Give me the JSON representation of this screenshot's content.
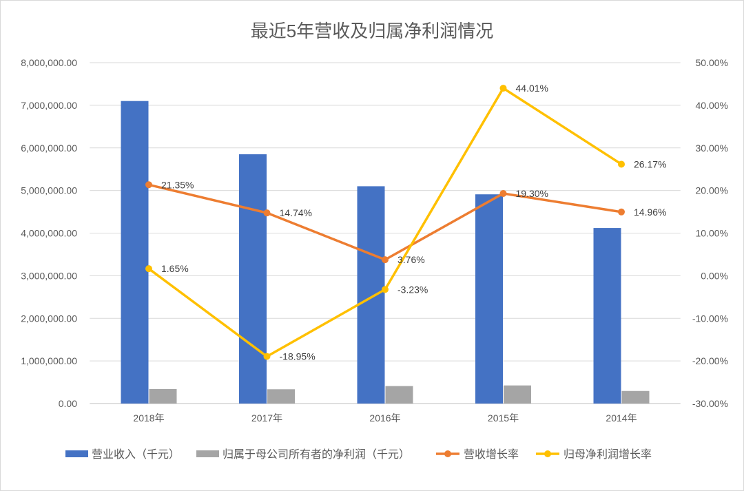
{
  "chart_data": {
    "type": "bar",
    "title": "最近5年营收及归属净利润情况",
    "categories": [
      "2018年",
      "2017年",
      "2016年",
      "2015年",
      "2014年"
    ],
    "ylim": [
      0,
      8000000
    ],
    "y2lim": [
      -30,
      50
    ],
    "grid": true,
    "legend_position": "bottom",
    "y_ticks": [
      {
        "value": 0,
        "label": "0.00"
      },
      {
        "value": 1000000,
        "label": "1,000,000.00"
      },
      {
        "value": 2000000,
        "label": "2,000,000.00"
      },
      {
        "value": 3000000,
        "label": "3,000,000.00"
      },
      {
        "value": 4000000,
        "label": "4,000,000.00"
      },
      {
        "value": 5000000,
        "label": "5,000,000.00"
      },
      {
        "value": 6000000,
        "label": "6,000,000.00"
      },
      {
        "value": 7000000,
        "label": "7,000,000.00"
      },
      {
        "value": 8000000,
        "label": "8,000,000.00"
      }
    ],
    "y2_ticks": [
      {
        "value": -30,
        "label": "-30.00%"
      },
      {
        "value": -20,
        "label": "-20.00%"
      },
      {
        "value": -10,
        "label": "-10.00%"
      },
      {
        "value": 0,
        "label": "0.00%"
      },
      {
        "value": 10,
        "label": "10.00%"
      },
      {
        "value": 20,
        "label": "20.00%"
      },
      {
        "value": 30,
        "label": "30.00%"
      },
      {
        "value": 40,
        "label": "40.00%"
      },
      {
        "value": 50,
        "label": "50.00%"
      }
    ],
    "series": [
      {
        "name": "营业收入（千元）",
        "type": "bar",
        "axis": "left",
        "color": "#4472C4",
        "values": [
          7100000,
          5850000,
          5100000,
          4910000,
          4120000
        ]
      },
      {
        "name": "归属于母公司所有者的净利润（千元）",
        "type": "bar",
        "axis": "left",
        "color": "#A5A5A5",
        "values": [
          340000,
          335000,
          410000,
          425000,
          295000
        ]
      },
      {
        "name": "营收增长率",
        "type": "line",
        "axis": "right",
        "color": "#ED7D31",
        "values": [
          21.35,
          14.74,
          3.76,
          19.3,
          14.96
        ],
        "labels": [
          "21.35%",
          "14.74%",
          "3.76%",
          "19.30%",
          "14.96%"
        ]
      },
      {
        "name": "归母净利润增长率",
        "type": "line",
        "axis": "right",
        "color": "#FFC000",
        "values": [
          1.65,
          -18.95,
          -3.23,
          44.01,
          26.17
        ],
        "labels": [
          "1.65%",
          "-18.95%",
          "-3.23%",
          "44.01%",
          "26.17%"
        ]
      }
    ]
  }
}
